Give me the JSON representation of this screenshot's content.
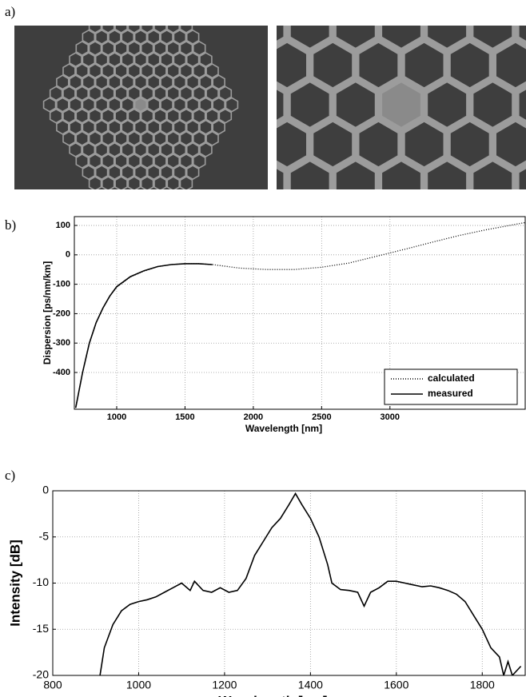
{
  "panels": [
    "a)",
    "b)",
    "c)"
  ],
  "chart_data": [
    {
      "type": "line",
      "x_label": "Wavelength [nm]",
      "y_label": "Dispersion [ps/nm/km]",
      "xlim": [
        690,
        3990
      ],
      "ylim": [
        -525,
        130
      ],
      "xticks": [
        1000,
        1500,
        2000,
        2500,
        3000
      ],
      "yticks": [
        -400,
        -300,
        -200,
        -100,
        0,
        100
      ],
      "grid": true,
      "legend": "lower right",
      "series": [
        {
          "name": "calculated",
          "color": "#000000",
          "style": "dotted",
          "x": [
            700,
            750,
            800,
            850,
            900,
            950,
            1000,
            1100,
            1200,
            1300,
            1400,
            1500,
            1600,
            1700,
            1900,
            2100,
            2300,
            2500,
            2700,
            2900,
            3100,
            3300,
            3500,
            3700,
            3990
          ],
          "values": [
            -520,
            -400,
            -300,
            -230,
            -180,
            -140,
            -110,
            -75,
            -55,
            -40,
            -33,
            -30,
            -30,
            -33,
            -45,
            -50,
            -50,
            -42,
            -28,
            -5,
            18,
            42,
            65,
            85,
            110
          ]
        },
        {
          "name": "measured",
          "color": "#000000",
          "style": "solid",
          "x": [
            700,
            750,
            800,
            850,
            900,
            950,
            1000,
            1100,
            1200,
            1300,
            1400,
            1500,
            1600,
            1700
          ],
          "values": [
            -520,
            -400,
            -300,
            -230,
            -180,
            -140,
            -108,
            -74,
            -54,
            -40,
            -33,
            -30,
            -30,
            -33
          ]
        }
      ]
    },
    {
      "type": "line",
      "x_label": "Wavelength [nm]",
      "y_label": "Intensity [dB]",
      "xlim": [
        800,
        1900
      ],
      "ylim": [
        -20,
        0
      ],
      "xticks": [
        800,
        1000,
        1200,
        1400,
        1600,
        1800
      ],
      "yticks": [
        -20,
        -15,
        -10,
        -5,
        0
      ],
      "grid": true,
      "series": [
        {
          "color": "#000000",
          "style": "solid",
          "x": [
            910,
            920,
            940,
            960,
            980,
            1000,
            1020,
            1040,
            1060,
            1080,
            1100,
            1120,
            1130,
            1150,
            1170,
            1190,
            1210,
            1230,
            1250,
            1270,
            1290,
            1310,
            1330,
            1350,
            1365,
            1380,
            1400,
            1420,
            1440,
            1450,
            1470,
            1490,
            1510,
            1525,
            1540,
            1560,
            1580,
            1600,
            1620,
            1640,
            1660,
            1680,
            1700,
            1720,
            1740,
            1760,
            1780,
            1800,
            1820,
            1840,
            1850,
            1860,
            1870,
            1890
          ],
          "values": [
            -20,
            -17,
            -14.5,
            -13,
            -12.3,
            -12,
            -11.8,
            -11.5,
            -11,
            -10.5,
            -10,
            -10.8,
            -9.8,
            -10.8,
            -11,
            -10.5,
            -11,
            -10.8,
            -9.5,
            -7,
            -5.5,
            -4,
            -3,
            -1.5,
            -0.3,
            -1.5,
            -3,
            -5,
            -8,
            -10,
            -10.7,
            -10.8,
            -11,
            -12.5,
            -11,
            -10.5,
            -9.8,
            -9.8,
            -10,
            -10.2,
            -10.4,
            -10.3,
            -10.5,
            -10.8,
            -11.2,
            -12,
            -13.5,
            -15,
            -17,
            -18,
            -20,
            -18.5,
            -20,
            -19
          ]
        }
      ]
    }
  ]
}
